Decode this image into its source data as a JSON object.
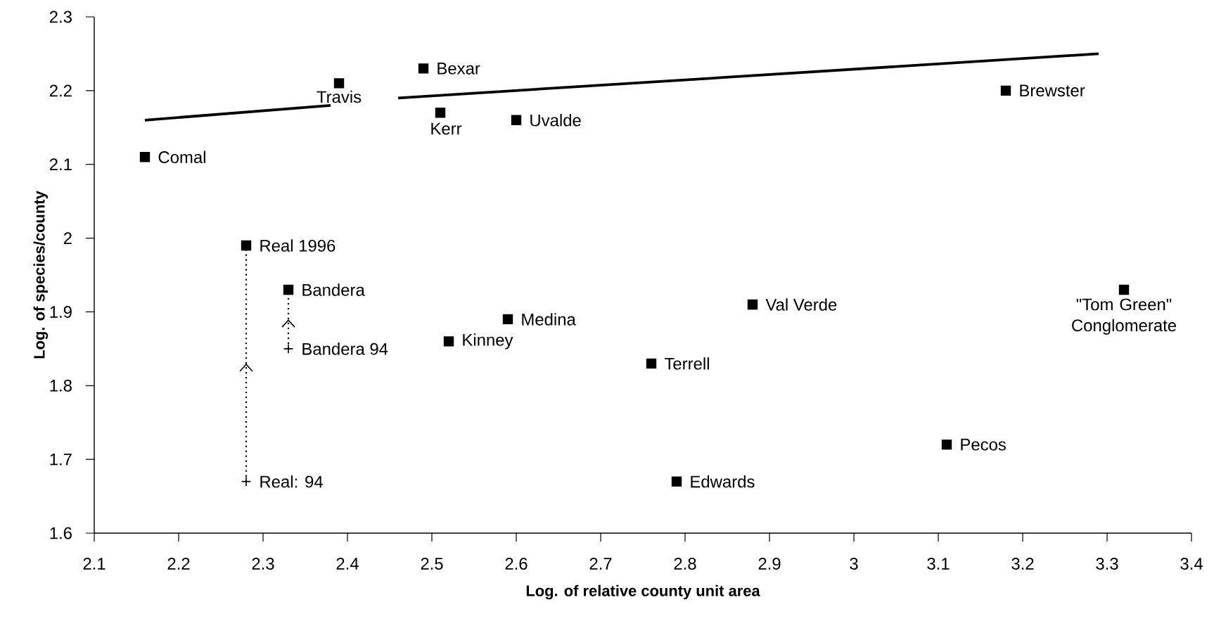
{
  "chart_data": {
    "type": "scatter",
    "xlabel": "Log. of relative county unit area",
    "ylabel": "Log. of species/county",
    "xlim": [
      2.1,
      3.4
    ],
    "ylim": [
      1.6,
      2.3
    ],
    "xticks": [
      2.1,
      2.2,
      2.3,
      2.4,
      2.5,
      2.6,
      2.7,
      2.8,
      2.9,
      3,
      3.1,
      3.2,
      3.3,
      3.4
    ],
    "yticks": [
      1.6,
      1.7,
      1.8,
      1.9,
      2,
      2.1,
      2.2,
      2.3
    ],
    "series": [
      {
        "marker": "square",
        "color": "#000000",
        "x": [
          2.16,
          2.39,
          2.49,
          2.51,
          2.6,
          3.18,
          2.28,
          2.33,
          2.59,
          2.52,
          2.88,
          2.76,
          2.79,
          3.11,
          3.32
        ],
        "values": [
          2.11,
          2.21,
          2.23,
          2.17,
          2.16,
          2.2,
          1.99,
          1.93,
          1.89,
          1.86,
          1.91,
          1.83,
          1.67,
          1.72,
          1.93
        ]
      },
      {
        "marker": "cross",
        "color": "#000000",
        "x": [
          2.28,
          2.33
        ],
        "values": [
          1.67,
          1.85
        ]
      },
      {
        "type": "line",
        "line_style": "solid",
        "color": "#000000",
        "x": [
          2.16,
          2.38,
          2.42,
          2.46,
          3.29
        ],
        "values": [
          2.16,
          2.18,
          null,
          2.19,
          2.25
        ]
      },
      {
        "type": "line",
        "line_style": "dotted",
        "color": "#000000",
        "x": [
          2.28,
          2.28
        ],
        "values": [
          1.67,
          1.99
        ]
      },
      {
        "type": "line",
        "line_style": "dotted",
        "color": "#000000",
        "x": [
          2.33,
          2.33
        ],
        "values": [
          1.85,
          1.93
        ]
      }
    ],
    "annotations": [
      {
        "text": "Comal",
        "x": 2.16,
        "y": 2.11
      },
      {
        "text": "Travis",
        "x": 2.39,
        "y": 2.21
      },
      {
        "text": "Bexar",
        "x": 2.49,
        "y": 2.23
      },
      {
        "text": "Kerr",
        "x": 2.51,
        "y": 2.17
      },
      {
        "text": "Uvalde",
        "x": 2.6,
        "y": 2.16
      },
      {
        "text": "Brewster",
        "x": 3.18,
        "y": 2.2
      },
      {
        "text": "Real 1996",
        "x": 2.28,
        "y": 1.99
      },
      {
        "text": "Bandera",
        "x": 2.33,
        "y": 1.93
      },
      {
        "text": "Bandera 94",
        "x": 2.33,
        "y": 1.85
      },
      {
        "text": "Real: 94",
        "x": 2.28,
        "y": 1.67
      },
      {
        "text": "Medina",
        "x": 2.59,
        "y": 1.89
      },
      {
        "text": "Kinney",
        "x": 2.52,
        "y": 1.86
      },
      {
        "text": "Val Verde",
        "x": 2.88,
        "y": 1.91
      },
      {
        "text": "Terrell",
        "x": 2.76,
        "y": 1.83
      },
      {
        "text": "Edwards",
        "x": 2.79,
        "y": 1.67
      },
      {
        "text": "Pecos",
        "x": 3.11,
        "y": 1.72
      },
      {
        "text": "\"Tom Green\" Conglomerate",
        "x": 3.32,
        "y": 1.93
      }
    ]
  }
}
